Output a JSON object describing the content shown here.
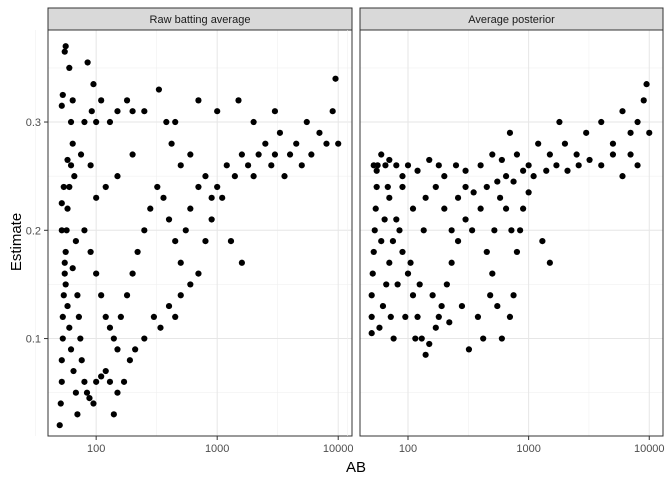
{
  "chart_data": {
    "type": "scatter",
    "xlabel": "AB",
    "ylabel": "Estimate",
    "x_scale": "log10",
    "xlim": [
      40,
      13000
    ],
    "ylim": [
      0.01,
      0.385
    ],
    "x_ticks": [
      100,
      1000,
      10000
    ],
    "x_tick_labels": [
      "100",
      "1000",
      "10000"
    ],
    "y_ticks": [
      0.1,
      0.2,
      0.3
    ],
    "y_tick_labels": [
      "0.1",
      "0.2",
      "0.3"
    ],
    "grid": true,
    "legend": "none",
    "point_color": "#000000",
    "panels": [
      {
        "title": "Raw batting average",
        "points": [
          [
            50,
            0.02
          ],
          [
            51,
            0.04
          ],
          [
            52,
            0.06
          ],
          [
            52,
            0.08
          ],
          [
            53,
            0.1
          ],
          [
            53,
            0.12
          ],
          [
            54,
            0.14
          ],
          [
            55,
            0.16
          ],
          [
            56,
            0.18
          ],
          [
            57,
            0.2
          ],
          [
            58,
            0.22
          ],
          [
            60,
            0.24
          ],
          [
            62,
            0.26
          ],
          [
            64,
            0.28
          ],
          [
            52,
            0.315
          ],
          [
            53,
            0.325
          ],
          [
            55,
            0.365
          ],
          [
            56,
            0.37
          ],
          [
            60,
            0.35
          ],
          [
            62,
            0.3
          ],
          [
            64,
            0.32
          ],
          [
            80,
            0.3
          ],
          [
            85,
            0.355
          ],
          [
            92,
            0.31
          ],
          [
            95,
            0.335
          ],
          [
            100,
            0.3
          ],
          [
            110,
            0.32
          ],
          [
            130,
            0.3
          ],
          [
            150,
            0.31
          ],
          [
            180,
            0.32
          ],
          [
            200,
            0.31
          ],
          [
            250,
            0.31
          ],
          [
            330,
            0.33
          ],
          [
            380,
            0.3
          ],
          [
            700,
            0.32
          ],
          [
            52,
            0.2
          ],
          [
            55,
            0.17
          ],
          [
            58,
            0.13
          ],
          [
            60,
            0.11
          ],
          [
            62,
            0.09
          ],
          [
            65,
            0.07
          ],
          [
            68,
            0.05
          ],
          [
            70,
            0.03
          ],
          [
            56,
            0.15
          ],
          [
            64,
            0.165
          ],
          [
            68,
            0.19
          ],
          [
            70,
            0.14
          ],
          [
            72,
            0.12
          ],
          [
            74,
            0.1
          ],
          [
            76,
            0.08
          ],
          [
            80,
            0.06
          ],
          [
            84,
            0.05
          ],
          [
            88,
            0.045
          ],
          [
            95,
            0.04
          ],
          [
            100,
            0.06
          ],
          [
            110,
            0.065
          ],
          [
            120,
            0.07
          ],
          [
            130,
            0.06
          ],
          [
            140,
            0.03
          ],
          [
            150,
            0.05
          ],
          [
            170,
            0.06
          ],
          [
            190,
            0.08
          ],
          [
            210,
            0.09
          ],
          [
            250,
            0.1
          ],
          [
            300,
            0.12
          ],
          [
            340,
            0.11
          ],
          [
            400,
            0.13
          ],
          [
            450,
            0.12
          ],
          [
            500,
            0.14
          ],
          [
            600,
            0.15
          ],
          [
            700,
            0.16
          ],
          [
            800,
            0.19
          ],
          [
            900,
            0.21
          ],
          [
            1100,
            0.23
          ],
          [
            1300,
            0.19
          ],
          [
            1600,
            0.17
          ],
          [
            80,
            0.2
          ],
          [
            90,
            0.18
          ],
          [
            100,
            0.16
          ],
          [
            110,
            0.14
          ],
          [
            120,
            0.12
          ],
          [
            130,
            0.11
          ],
          [
            140,
            0.1
          ],
          [
            150,
            0.09
          ],
          [
            160,
            0.12
          ],
          [
            180,
            0.14
          ],
          [
            200,
            0.16
          ],
          [
            220,
            0.18
          ],
          [
            250,
            0.2
          ],
          [
            280,
            0.22
          ],
          [
            320,
            0.24
          ],
          [
            360,
            0.23
          ],
          [
            400,
            0.21
          ],
          [
            450,
            0.19
          ],
          [
            500,
            0.17
          ],
          [
            550,
            0.2
          ],
          [
            600,
            0.22
          ],
          [
            700,
            0.24
          ],
          [
            800,
            0.25
          ],
          [
            900,
            0.23
          ],
          [
            1000,
            0.24
          ],
          [
            1200,
            0.26
          ],
          [
            1400,
            0.25
          ],
          [
            1600,
            0.27
          ],
          [
            1800,
            0.26
          ],
          [
            2000,
            0.25
          ],
          [
            2200,
            0.27
          ],
          [
            2500,
            0.28
          ],
          [
            2800,
            0.26
          ],
          [
            3000,
            0.27
          ],
          [
            3300,
            0.29
          ],
          [
            3600,
            0.25
          ],
          [
            4000,
            0.27
          ],
          [
            4500,
            0.28
          ],
          [
            5000,
            0.26
          ],
          [
            5500,
            0.3
          ],
          [
            6000,
            0.27
          ],
          [
            7000,
            0.29
          ],
          [
            8000,
            0.28
          ],
          [
            9000,
            0.31
          ],
          [
            9500,
            0.34
          ],
          [
            10000,
            0.28
          ],
          [
            3000,
            0.31
          ],
          [
            2000,
            0.3
          ],
          [
            1500,
            0.32
          ],
          [
            1000,
            0.31
          ],
          [
            600,
            0.27
          ],
          [
            500,
            0.26
          ],
          [
            450,
            0.3
          ],
          [
            420,
            0.28
          ],
          [
            200,
            0.27
          ],
          [
            150,
            0.25
          ],
          [
            120,
            0.24
          ],
          [
            100,
            0.23
          ],
          [
            90,
            0.26
          ],
          [
            75,
            0.27
          ],
          [
            66,
            0.25
          ],
          [
            58,
            0.265
          ],
          [
            54,
            0.24
          ],
          [
            52,
            0.225
          ]
        ]
      },
      {
        "title": "Average posterior",
        "points": [
          [
            50,
            0.105
          ],
          [
            50,
            0.12
          ],
          [
            50,
            0.14
          ],
          [
            51,
            0.16
          ],
          [
            52,
            0.18
          ],
          [
            53,
            0.2
          ],
          [
            54,
            0.22
          ],
          [
            55,
            0.24
          ],
          [
            56,
            0.26
          ],
          [
            52,
            0.26
          ],
          [
            55,
            0.255
          ],
          [
            60,
            0.27
          ],
          [
            65,
            0.26
          ],
          [
            70,
            0.265
          ],
          [
            80,
            0.26
          ],
          [
            90,
            0.25
          ],
          [
            100,
            0.26
          ],
          [
            120,
            0.255
          ],
          [
            150,
            0.265
          ],
          [
            180,
            0.26
          ],
          [
            200,
            0.25
          ],
          [
            250,
            0.26
          ],
          [
            300,
            0.255
          ],
          [
            400,
            0.26
          ],
          [
            500,
            0.27
          ],
          [
            600,
            0.265
          ],
          [
            700,
            0.29
          ],
          [
            800,
            0.27
          ],
          [
            1000,
            0.26
          ],
          [
            1200,
            0.28
          ],
          [
            1500,
            0.27
          ],
          [
            1800,
            0.3
          ],
          [
            2000,
            0.28
          ],
          [
            2500,
            0.27
          ],
          [
            3000,
            0.29
          ],
          [
            4000,
            0.3
          ],
          [
            5000,
            0.27
          ],
          [
            6000,
            0.31
          ],
          [
            7000,
            0.29
          ],
          [
            8000,
            0.3
          ],
          [
            9000,
            0.32
          ],
          [
            9500,
            0.335
          ],
          [
            10000,
            0.29
          ],
          [
            58,
            0.11
          ],
          [
            62,
            0.13
          ],
          [
            66,
            0.15
          ],
          [
            70,
            0.17
          ],
          [
            75,
            0.19
          ],
          [
            80,
            0.21
          ],
          [
            85,
            0.2
          ],
          [
            90,
            0.18
          ],
          [
            100,
            0.16
          ],
          [
            110,
            0.14
          ],
          [
            120,
            0.12
          ],
          [
            130,
            0.1
          ],
          [
            140,
            0.085
          ],
          [
            150,
            0.095
          ],
          [
            170,
            0.11
          ],
          [
            190,
            0.13
          ],
          [
            210,
            0.15
          ],
          [
            230,
            0.17
          ],
          [
            260,
            0.19
          ],
          [
            300,
            0.21
          ],
          [
            340,
            0.2
          ],
          [
            400,
            0.22
          ],
          [
            450,
            0.18
          ],
          [
            500,
            0.16
          ],
          [
            550,
            0.13
          ],
          [
            600,
            0.1
          ],
          [
            700,
            0.12
          ],
          [
            750,
            0.14
          ],
          [
            800,
            0.18
          ],
          [
            850,
            0.2
          ],
          [
            900,
            0.22
          ],
          [
            1000,
            0.235
          ],
          [
            1300,
            0.19
          ],
          [
            1500,
            0.17
          ],
          [
            70,
            0.23
          ],
          [
            90,
            0.24
          ],
          [
            110,
            0.22
          ],
          [
            140,
            0.23
          ],
          [
            170,
            0.24
          ],
          [
            200,
            0.22
          ],
          [
            230,
            0.2
          ],
          [
            260,
            0.23
          ],
          [
            300,
            0.24
          ],
          [
            350,
            0.235
          ],
          [
            450,
            0.24
          ],
          [
            550,
            0.245
          ],
          [
            650,
            0.25
          ],
          [
            750,
            0.245
          ],
          [
            900,
            0.255
          ],
          [
            1100,
            0.25
          ],
          [
            1400,
            0.255
          ],
          [
            1700,
            0.26
          ],
          [
            2100,
            0.255
          ],
          [
            2600,
            0.26
          ],
          [
            3200,
            0.265
          ],
          [
            4000,
            0.26
          ],
          [
            5000,
            0.28
          ],
          [
            6000,
            0.25
          ],
          [
            7000,
            0.27
          ],
          [
            8000,
            0.26
          ],
          [
            60,
            0.19
          ],
          [
            64,
            0.21
          ],
          [
            68,
            0.24
          ],
          [
            72,
            0.12
          ],
          [
            76,
            0.1
          ],
          [
            82,
            0.15
          ],
          [
            95,
            0.12
          ],
          [
            105,
            0.17
          ],
          [
            115,
            0.1
          ],
          [
            125,
            0.15
          ],
          [
            135,
            0.2
          ],
          [
            160,
            0.14
          ],
          [
            180,
            0.12
          ],
          [
            220,
            0.115
          ],
          [
            280,
            0.13
          ],
          [
            320,
            0.09
          ],
          [
            380,
            0.12
          ],
          [
            420,
            0.1
          ],
          [
            480,
            0.14
          ],
          [
            520,
            0.2
          ],
          [
            580,
            0.23
          ],
          [
            650,
            0.22
          ],
          [
            720,
            0.2
          ]
        ]
      }
    ]
  }
}
